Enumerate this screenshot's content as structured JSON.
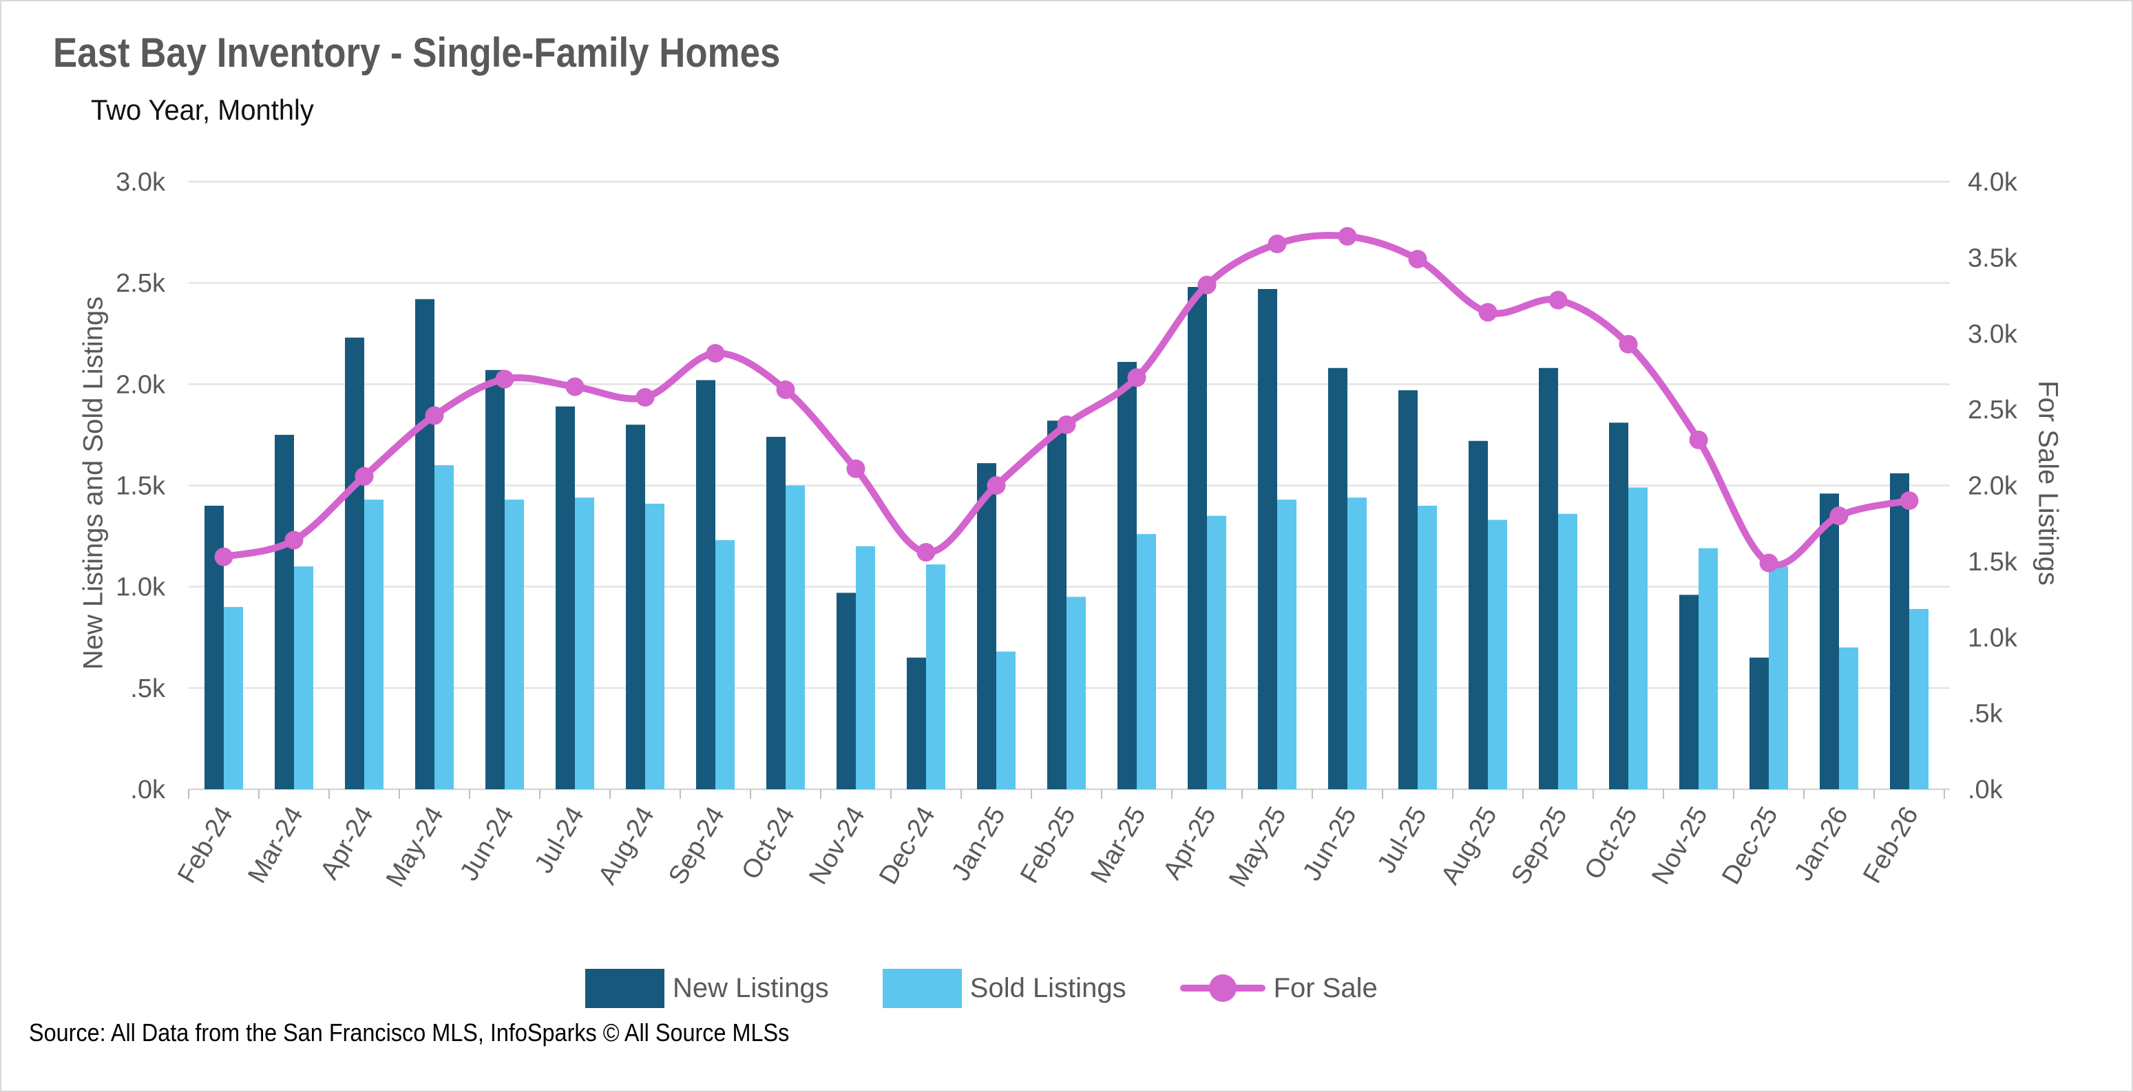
{
  "header": {
    "title": "East Bay Inventory - Single-Family Homes",
    "subtitle": "Two Year, Monthly"
  },
  "source_note": "Source: All Data from the San Francisco MLS, InfoSparks © All Source MLSs",
  "colors": {
    "new_listings": "#17597C",
    "sold_listings": "#5CC6EF",
    "for_sale": "#D464CE",
    "grid": "#E3E3E3",
    "axis_line": "#D6D6D6",
    "tick_mark": "#BFBFBF",
    "axis_text": "#595959",
    "title_text": "#595959",
    "subtitle_text": "#111111",
    "source_text": "#000000",
    "border": "#D9D9D9",
    "background": "#FFFFFF"
  },
  "chart_data": {
    "type": "bar",
    "subtype": "grouped-bars-with-smoothed-line",
    "title": "East Bay Inventory - Single-Family Homes",
    "subtitle": "Two Year, Monthly",
    "categories": [
      "Feb-24",
      "Mar-24",
      "Apr-24",
      "May-24",
      "Jun-24",
      "Jul-24",
      "Aug-24",
      "Sep-24",
      "Oct-24",
      "Nov-24",
      "Dec-24",
      "Jan-25",
      "Feb-25",
      "Mar-25",
      "Apr-25",
      "May-25",
      "Jun-25",
      "Jul-25",
      "Aug-25",
      "Sep-25",
      "Oct-25",
      "Nov-25",
      "Dec-25",
      "Jan-26",
      "Feb-26"
    ],
    "series": [
      {
        "name": "New Listings",
        "type": "bar",
        "axis": "left",
        "values": [
          1400,
          1750,
          2230,
          2420,
          2070,
          1890,
          1800,
          2020,
          1740,
          970,
          650,
          1610,
          1820,
          2110,
          2480,
          2470,
          2080,
          1970,
          1720,
          2080,
          1810,
          960,
          650,
          1460,
          1560
        ]
      },
      {
        "name": "Sold Listings",
        "type": "bar",
        "axis": "left",
        "values": [
          900,
          1100,
          1430,
          1600,
          1430,
          1440,
          1410,
          1230,
          1500,
          1200,
          1110,
          680,
          950,
          1260,
          1350,
          1430,
          1440,
          1400,
          1330,
          1360,
          1490,
          1190,
          1100,
          700,
          890
        ]
      },
      {
        "name": "For Sale",
        "type": "line",
        "axis": "right",
        "values": [
          1530,
          1640,
          2060,
          2460,
          2700,
          2650,
          2580,
          2870,
          2630,
          2110,
          1560,
          2000,
          2400,
          2710,
          3320,
          3590,
          3640,
          3490,
          3140,
          3220,
          2930,
          2300,
          1490,
          1800,
          1900
        ]
      }
    ],
    "left_axis": {
      "label": "New Listings and Sold Listings",
      "min": 0,
      "max": 3000,
      "tick_step": 500,
      "ticks": [
        "3.0k",
        "2.5k",
        "2.0k",
        "1.5k",
        "1.0k",
        ".5k",
        ".0k"
      ]
    },
    "right_axis": {
      "label": "For Sale Listings",
      "min": 0,
      "max": 4000,
      "tick_step": 500,
      "ticks": [
        "4.0k",
        "3.5k",
        "3.0k",
        "2.5k",
        "2.0k",
        "1.5k",
        "1.0k",
        ".5k",
        ".0k"
      ]
    },
    "legend": [
      {
        "label": "New Listings",
        "marker": "swatch",
        "color_key": "new_listings"
      },
      {
        "label": "Sold Listings",
        "marker": "swatch",
        "color_key": "sold_listings"
      },
      {
        "label": "For Sale",
        "marker": "line-dot",
        "color_key": "for_sale"
      }
    ],
    "grid": "horizontal",
    "legend_position": "bottom"
  }
}
